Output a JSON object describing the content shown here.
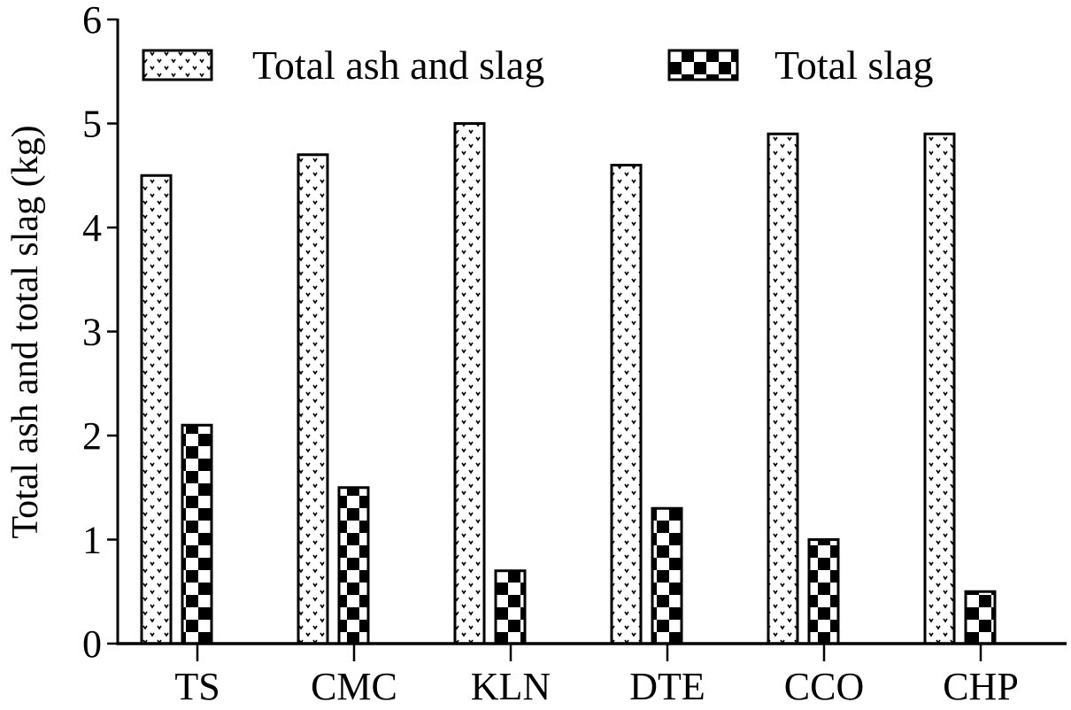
{
  "chart_data": {
    "type": "bar",
    "title": "",
    "xlabel": "",
    "ylabel": "Total ash and total slag  (kg)",
    "ylim": [
      0,
      6
    ],
    "yticks": [
      "0",
      "1",
      "2",
      "3",
      "4",
      "5",
      "6"
    ],
    "grid": false,
    "legend_position": "top",
    "categories": [
      "TS",
      "CMC",
      "KLN",
      "DTE",
      "CCO",
      "CHP"
    ],
    "series": [
      {
        "name": "Total ash and slag",
        "pattern": "dotted",
        "values": [
          4.5,
          4.7,
          5.0,
          4.6,
          4.9,
          4.9
        ]
      },
      {
        "name": "Total slag",
        "pattern": "checkerboard",
        "values": [
          2.1,
          1.5,
          0.7,
          1.3,
          1.0,
          0.5
        ]
      }
    ],
    "colors": {
      "stroke": "#000000",
      "fill": "#ffffff"
    }
  }
}
